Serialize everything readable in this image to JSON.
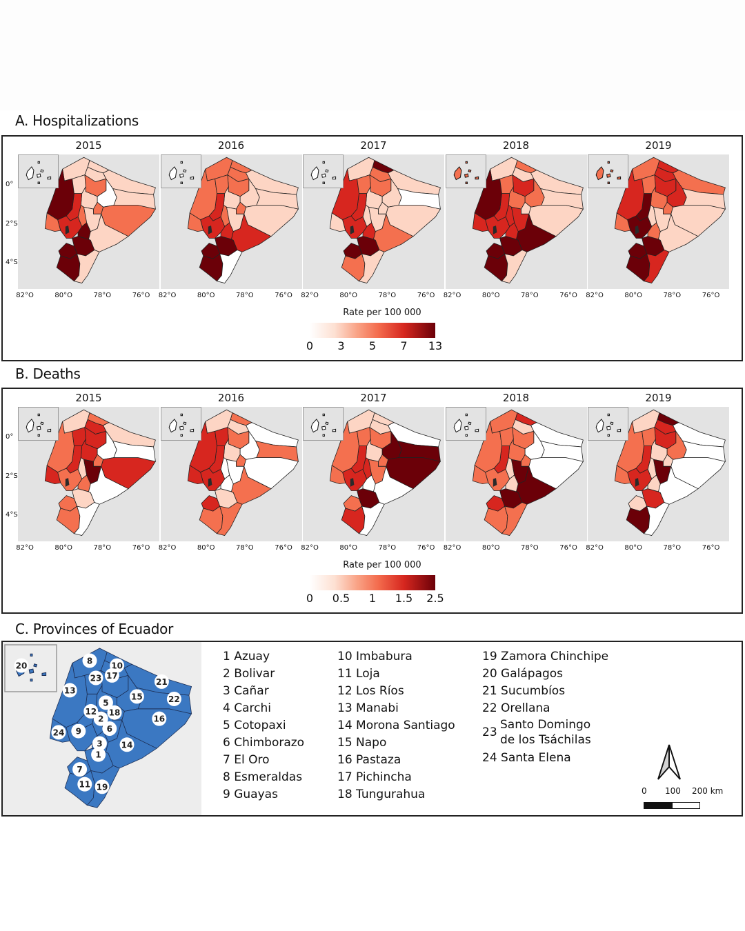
{
  "sections": {
    "a_title": "A. Hospitalizations",
    "b_title": "B. Deaths",
    "c_title": "C. Provinces of Ecuador"
  },
  "axes": {
    "x_ticks": [
      "82°O",
      "80°O",
      "78°O",
      "76°O"
    ],
    "y_ticks": [
      "0°",
      "2°S",
      "4°S"
    ]
  },
  "chart_data": [
    {
      "type": "heatmap",
      "subtype": "choropleth",
      "title": "A. Hospitalizations",
      "legend_title": "Rate per 100 000",
      "legend_ticks": [
        "0",
        "3",
        "5",
        "7",
        "13"
      ],
      "legend_placement": "bottom-center",
      "color_classes": [
        "#ffffff",
        "#fdd5c4",
        "#f4704f",
        "#d7261f",
        "#6b0008"
      ],
      "years": [
        "2015",
        "2016",
        "2017",
        "2018",
        "2019"
      ],
      "province_class_by_year": {
        "2015": {
          "1": 4,
          "2": 2,
          "3": 4,
          "4": 1,
          "5": 1,
          "6": 1,
          "7": 4,
          "8": 1,
          "9": 3,
          "10": 1,
          "11": 4,
          "12": 3,
          "13": 4,
          "14": 1,
          "15": 0,
          "16": 2,
          "17": 2,
          "18": 2,
          "19": 1,
          "20": 0,
          "21": 1,
          "22": 1,
          "23": 1,
          "24": 2
        },
        "2016": {
          "1": 4,
          "2": 2,
          "3": 3,
          "4": 2,
          "5": 1,
          "6": 1,
          "7": 4,
          "8": 2,
          "9": 3,
          "10": 2,
          "11": 4,
          "12": 3,
          "13": 2,
          "14": 3,
          "15": 1,
          "16": 1,
          "17": 2,
          "18": 2,
          "19": 0,
          "20": 0,
          "21": 1,
          "22": 1,
          "23": 2,
          "24": 2
        },
        "2017": {
          "1": 4,
          "2": 1,
          "3": 3,
          "4": 4,
          "5": 1,
          "6": 1,
          "7": 4,
          "8": 1,
          "9": 3,
          "10": 2,
          "11": 2,
          "12": 3,
          "13": 3,
          "14": 2,
          "15": 1,
          "16": 1,
          "17": 2,
          "18": 1,
          "19": 1,
          "20": 0,
          "21": 1,
          "22": 0,
          "23": 2,
          "24": 1
        },
        "2018": {
          "1": 4,
          "2": 3,
          "3": 3,
          "4": 2,
          "5": 2,
          "6": 3,
          "7": 4,
          "8": 1,
          "9": 3,
          "10": 1,
          "11": 4,
          "12": 3,
          "13": 4,
          "14": 4,
          "15": 2,
          "16": 1,
          "17": 3,
          "18": 1,
          "19": 1,
          "20": 2,
          "21": 1,
          "22": 1,
          "23": 2,
          "24": 3
        },
        "2019": {
          "1": 4,
          "2": 1,
          "3": 2,
          "4": 3,
          "5": 2,
          "6": 1,
          "7": 4,
          "8": 2,
          "9": 4,
          "10": 3,
          "11": 4,
          "12": 4,
          "13": 3,
          "14": 1,
          "15": 3,
          "16": 1,
          "17": 3,
          "18": 2,
          "19": 3,
          "20": 2,
          "21": 2,
          "22": 1,
          "23": 2,
          "24": 2
        }
      }
    },
    {
      "type": "heatmap",
      "subtype": "choropleth",
      "title": "B. Deaths",
      "legend_title": "Rate per 100 000",
      "legend_ticks": [
        "0",
        "0.5",
        "1",
        "1.5",
        "2.5"
      ],
      "legend_placement": "bottom-center",
      "color_classes": [
        "#ffffff",
        "#fdd5c4",
        "#f4704f",
        "#d7261f",
        "#6b0008"
      ],
      "years": [
        "2015",
        "2016",
        "2017",
        "2018",
        "2019"
      ],
      "province_class_by_year": {
        "2015": {
          "1": 1,
          "2": 1,
          "3": 2,
          "4": 2,
          "5": 3,
          "6": 4,
          "7": 2,
          "8": 1,
          "9": 2,
          "10": 3,
          "11": 2,
          "12": 3,
          "13": 2,
          "14": 0,
          "15": 0,
          "16": 3,
          "17": 3,
          "18": 2,
          "19": 0,
          "20": 0,
          "21": 1,
          "22": 0,
          "23": 3,
          "24": 3
        },
        "2016": {
          "1": 1,
          "2": 0,
          "3": 0,
          "4": 2,
          "5": 1,
          "6": 0,
          "7": 3,
          "8": 1,
          "9": 3,
          "10": 1,
          "11": 2,
          "12": 3,
          "13": 3,
          "14": 2,
          "15": 0,
          "16": 0,
          "17": 2,
          "18": 2,
          "19": 2,
          "20": 0,
          "21": 0,
          "22": 2,
          "23": 3,
          "24": 3
        },
        "2017": {
          "1": 4,
          "2": 3,
          "3": 0,
          "4": 1,
          "5": 1,
          "6": 2,
          "7": 2,
          "8": 1,
          "9": 3,
          "10": 1,
          "11": 3,
          "12": 3,
          "13": 2,
          "14": 0,
          "15": 4,
          "16": 4,
          "17": 2,
          "18": 2,
          "19": 0,
          "20": 0,
          "21": 0,
          "22": 4,
          "23": 2,
          "24": 2
        },
        "2018": {
          "1": 4,
          "2": 1,
          "3": 1,
          "4": 3,
          "5": 2,
          "6": 4,
          "7": 3,
          "8": 2,
          "9": 2,
          "10": 1,
          "11": 2,
          "12": 3,
          "13": 2,
          "14": 4,
          "15": 0,
          "16": 0,
          "17": 2,
          "18": 2,
          "19": 2,
          "20": 0,
          "21": 0,
          "22": 0,
          "23": 2,
          "24": 2
        },
        "2019": {
          "1": 3,
          "2": 1,
          "3": 1,
          "4": 4,
          "5": 1,
          "6": 4,
          "7": 1,
          "8": 1,
          "9": 3,
          "10": 3,
          "11": 4,
          "12": 3,
          "13": 2,
          "14": 0,
          "15": 2,
          "16": 0,
          "17": 3,
          "18": 1,
          "19": 0,
          "20": 0,
          "21": 0,
          "22": 0,
          "23": 2,
          "24": 2
        }
      }
    }
  ],
  "provinces_panel": {
    "base_color": "#3b78c2",
    "columns": [
      [
        {
          "num": "1",
          "name": "Azuay"
        },
        {
          "num": "2",
          "name": "Bolivar"
        },
        {
          "num": "3",
          "name": "Cañar"
        },
        {
          "num": "4",
          "name": "Carchi"
        },
        {
          "num": "5",
          "name": "Cotopaxi"
        },
        {
          "num": "6",
          "name": "Chimborazo"
        },
        {
          "num": "7",
          "name": "El Oro"
        },
        {
          "num": "8",
          "name": "Esmeraldas"
        },
        {
          "num": "9",
          "name": "Guayas"
        }
      ],
      [
        {
          "num": "10",
          "name": "Imbabura"
        },
        {
          "num": "11",
          "name": "Loja"
        },
        {
          "num": "12",
          "name": "Los Ríos"
        },
        {
          "num": "13",
          "name": "Manabi"
        },
        {
          "num": "14",
          "name": "Morona Santiago"
        },
        {
          "num": "15",
          "name": "Napo"
        },
        {
          "num": "16",
          "name": "Pastaza"
        },
        {
          "num": "17",
          "name": "Pichincha"
        },
        {
          "num": "18",
          "name": "Tungurahua"
        }
      ],
      [
        {
          "num": "19",
          "name": "Zamora Chinchipe"
        },
        {
          "num": "20",
          "name": "Galápagos"
        },
        {
          "num": "21",
          "name": "Sucumbíos"
        },
        {
          "num": "22",
          "name": "Orellana"
        },
        {
          "num": "23",
          "name": "Santo Domingo",
          "name2": "de los Tsáchilas"
        },
        {
          "num": "24",
          "name": "Santa Elena"
        }
      ]
    ],
    "scale": {
      "labels": [
        "0",
        "100",
        "200 km"
      ]
    },
    "north_arrow": "north-arrow-icon"
  }
}
